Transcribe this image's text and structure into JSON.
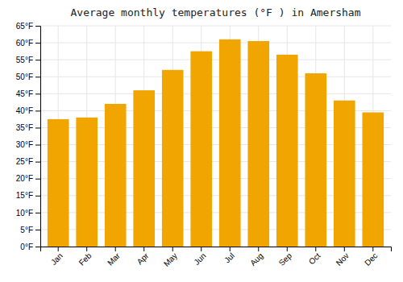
{
  "chart_data": {
    "type": "bar",
    "title": "Average monthly temperatures (°F ) in Amersham",
    "categories": [
      "Jan",
      "Feb",
      "Mar",
      "Apr",
      "May",
      "Jun",
      "Jul",
      "Aug",
      "Sep",
      "Oct",
      "Nov",
      "Dec"
    ],
    "values": [
      37.5,
      38.0,
      42.0,
      46.0,
      52.0,
      57.5,
      61.0,
      60.5,
      56.5,
      51.0,
      43.0,
      39.5
    ],
    "color": "#F0A500",
    "ylim": [
      0,
      65
    ],
    "yticks": [
      {
        "value": 0,
        "label": "0°F"
      },
      {
        "value": 5,
        "label": "5°F"
      },
      {
        "value": 10,
        "label": "10°F"
      },
      {
        "value": 15,
        "label": "15°F"
      },
      {
        "value": 20,
        "label": "20°F"
      },
      {
        "value": 25,
        "label": "25°F"
      },
      {
        "value": 30,
        "label": "30°F"
      },
      {
        "value": 35,
        "label": "35°F"
      },
      {
        "value": 40,
        "label": "40°F"
      },
      {
        "value": 45,
        "label": "45°F"
      },
      {
        "value": 50,
        "label": "50°F"
      },
      {
        "value": 55,
        "label": "55°F"
      },
      {
        "value": 60,
        "label": "60°F"
      },
      {
        "value": 65,
        "label": "65°F"
      }
    ],
    "grid": true
  }
}
